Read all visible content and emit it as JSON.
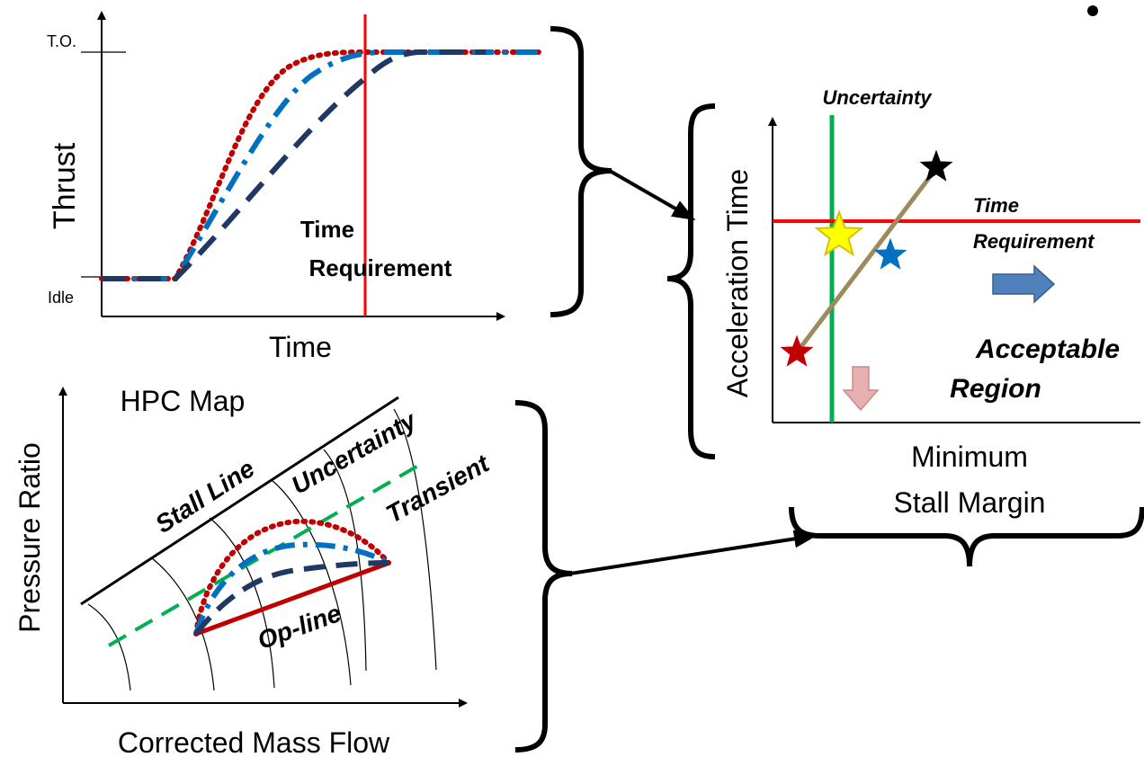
{
  "thrust_panel": {
    "y_label": "Thrust",
    "x_label": "Time",
    "to_label": "T.O.",
    "idle_label": "Idle",
    "req_label_1": "Time",
    "req_label_2": "Requirement"
  },
  "result_panel": {
    "y_label": "Acceleration Time",
    "x_label_1": "Minimum",
    "x_label_2": "Stall Margin",
    "uncertainty_label": "Uncertainty",
    "time_req_1": "Time",
    "time_req_2": "Requirement",
    "acceptable_1": "Acceptable",
    "acceptable_2": "Region"
  },
  "hpc_panel": {
    "title": "HPC Map",
    "y_label": "Pressure Ratio",
    "x_label": "Corrected Mass Flow",
    "stall_line": "Stall Line",
    "uncertainty": "Uncertainty",
    "transient": "Transient",
    "op_line": "Op-line"
  },
  "colors": {
    "red_dotted": "#c00000",
    "blue_dashdot": "#0070c0",
    "navy_dashed": "#1f3864",
    "time_req_line": "#ff0000",
    "uncertainty_line": "#00b050",
    "green_dashed": "#00b050",
    "op_line": "#c00000",
    "trend_line": "#9c8c5c",
    "right_arrow": "#4f81bd",
    "down_arrow": "#e6b0b0"
  },
  "icons": [
    "star-icon",
    "right-arrow-icon",
    "down-arrow-icon",
    "bullet-icon"
  ]
}
